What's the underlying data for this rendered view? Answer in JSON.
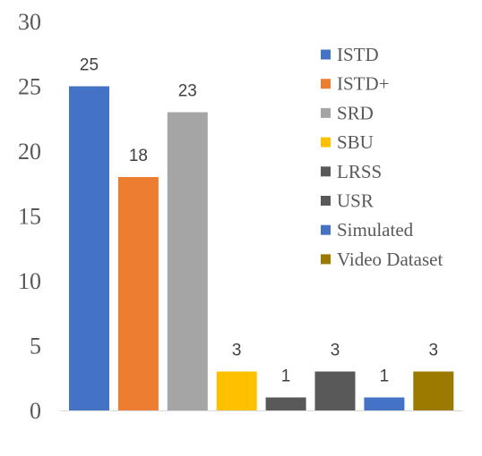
{
  "chart_data": {
    "type": "bar",
    "title": "",
    "xlabel": "",
    "ylabel": "",
    "ylim": [
      0,
      30
    ],
    "yticks": [
      0,
      5,
      10,
      15,
      20,
      25,
      30
    ],
    "grid": false,
    "legend_position": "right",
    "categories": [
      "ISTD",
      "ISTD+",
      "SRD",
      "SBU",
      "LRSS",
      "USR",
      "Simulated",
      "Video Dataset"
    ],
    "values": [
      25,
      18,
      23,
      3,
      1,
      3,
      1,
      3
    ],
    "data_labels": [
      "25",
      "18",
      "23",
      "3",
      "1",
      "3",
      "1",
      "3"
    ],
    "colors": [
      "#4472C4",
      "#ED7D31",
      "#A5A5A5",
      "#FFC000",
      "#595959",
      "#595959",
      "#4472C4",
      "#9C7A00"
    ],
    "legend": [
      "ISTD",
      "ISTD+",
      "SRD",
      "SBU",
      "LRSS",
      "USR",
      "Simulated",
      "Video Dataset"
    ]
  }
}
